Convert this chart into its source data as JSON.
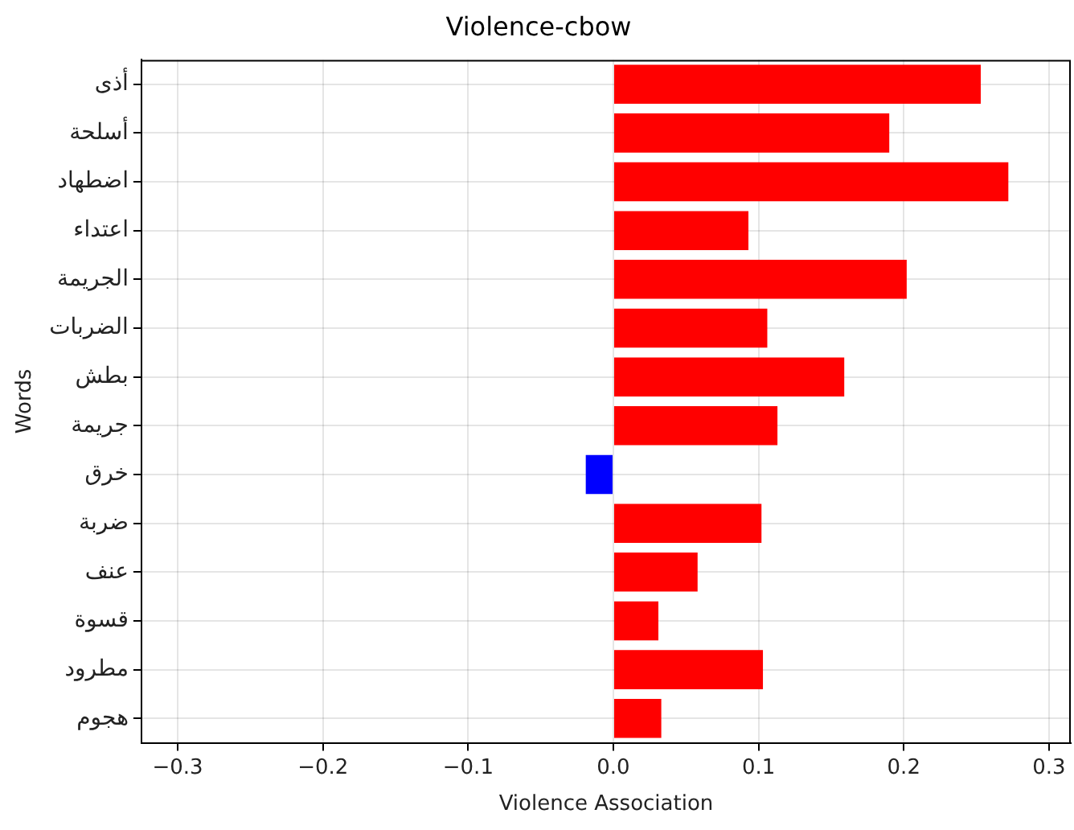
{
  "chart_data": {
    "type": "bar",
    "orientation": "horizontal",
    "title": "Violence-cbow",
    "xlabel": "Violence Association",
    "ylabel": "Words",
    "categories": [
      "أذى",
      "أسلحة",
      "اضطهاد",
      "اعتداء",
      "الجريمة",
      "الضربات",
      "بطش",
      "جريمة",
      "خرق",
      "ضربة",
      "عنف",
      "قسوة",
      "مطرود",
      "هجوم"
    ],
    "values": [
      0.253,
      0.19,
      0.272,
      0.093,
      0.202,
      0.106,
      0.159,
      0.113,
      -0.019,
      0.102,
      0.058,
      0.031,
      0.103,
      0.033
    ],
    "colors": [
      "#ff0000",
      "#ff0000",
      "#ff0000",
      "#ff0000",
      "#ff0000",
      "#ff0000",
      "#ff0000",
      "#ff0000",
      "#0000ff",
      "#ff0000",
      "#ff0000",
      "#ff0000",
      "#ff0000",
      "#ff0000"
    ],
    "xlim": [
      -0.325,
      0.315
    ],
    "xticks": [
      -0.3,
      -0.2,
      -0.1,
      {
        "value": 0,
        "label": "0.0"
      },
      0.1,
      0.2,
      0.3
    ],
    "grid": true
  }
}
